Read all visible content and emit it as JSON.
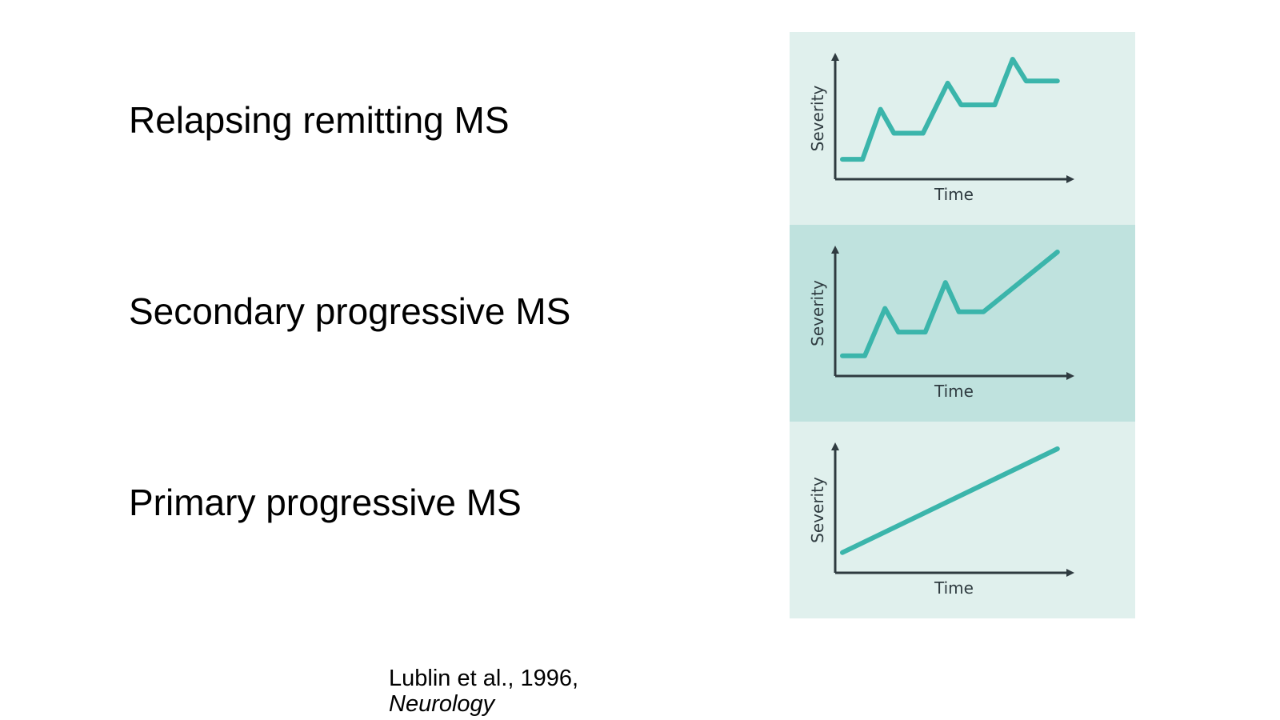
{
  "labels": {
    "relapsing_remitting": "Relapsing remitting MS",
    "secondary_progressive": "Secondary progressive MS",
    "primary_progressive": "Primary progressive MS"
  },
  "citation": {
    "authors_year": "Lublin et al., 1996,",
    "journal": "Neurology"
  },
  "colors": {
    "line": "#3bb5ab",
    "axis": "#2f3b40",
    "panel_light": "#e0f0ed",
    "panel_dark": "#bfe2de"
  },
  "chart_data": [
    {
      "type": "line",
      "title": "",
      "xlabel": "Time",
      "ylabel": "Severity",
      "xlim": [
        0,
        10
      ],
      "ylim": [
        0,
        10
      ],
      "series": [
        {
          "x": [
            0,
            0.9,
            1.7,
            2.3,
            3.6,
            4.7,
            5.3,
            6.8,
            7.6,
            8.2,
            9.6
          ],
          "y": [
            0.8,
            0.8,
            5.4,
            3.2,
            3.2,
            7.8,
            5.8,
            5.8,
            10.0,
            8.0,
            8.0
          ]
        }
      ]
    },
    {
      "type": "line",
      "title": "",
      "xlabel": "Time",
      "ylabel": "Severity",
      "xlim": [
        0,
        10
      ],
      "ylim": [
        0,
        10
      ],
      "series": [
        {
          "x": [
            0,
            1.0,
            1.9,
            2.5,
            3.7,
            4.6,
            5.2,
            6.3,
            9.6
          ],
          "y": [
            0.8,
            0.8,
            5.0,
            2.9,
            2.9,
            7.3,
            4.7,
            4.7,
            10.0
          ]
        }
      ]
    },
    {
      "type": "line",
      "title": "",
      "xlabel": "Time",
      "ylabel": "Severity",
      "xlim": [
        0,
        10
      ],
      "ylim": [
        0,
        10
      ],
      "series": [
        {
          "x": [
            0,
            9.6
          ],
          "y": [
            0.8,
            10.0
          ]
        }
      ]
    }
  ]
}
